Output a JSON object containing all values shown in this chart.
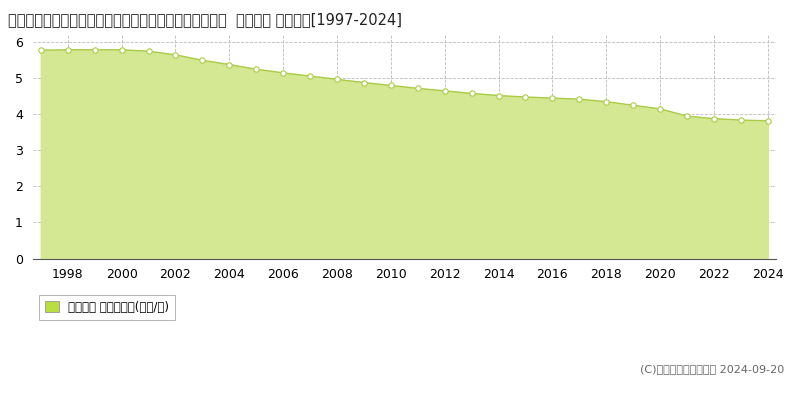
{
  "title": "長野県北佐久郡立科町大字芦田字上町屋敷２６８７番１  基準地価 地価推移[1997-2024]",
  "years": [
    1997,
    1998,
    1999,
    2000,
    2001,
    2002,
    2003,
    2004,
    2005,
    2006,
    2007,
    2008,
    2009,
    2010,
    2011,
    2012,
    2013,
    2014,
    2015,
    2016,
    2017,
    2018,
    2019,
    2020,
    2021,
    2022,
    2023,
    2024
  ],
  "values": [
    5.78,
    5.79,
    5.79,
    5.79,
    5.75,
    5.65,
    5.5,
    5.38,
    5.25,
    5.15,
    5.06,
    4.97,
    4.88,
    4.8,
    4.72,
    4.65,
    4.58,
    4.52,
    4.48,
    4.45,
    4.42,
    4.35,
    4.25,
    4.15,
    3.95,
    3.88,
    3.84,
    3.82
  ],
  "line_color": "#aacc44",
  "fill_color": "#d4e894",
  "marker_color": "#ffffff",
  "marker_edge_color": "#aacc44",
  "ylim": [
    0,
    6.2
  ],
  "yticks": [
    0,
    1,
    2,
    3,
    4,
    5,
    6
  ],
  "xtick_years": [
    1998,
    2000,
    2002,
    2004,
    2006,
    2008,
    2010,
    2012,
    2014,
    2016,
    2018,
    2020,
    2022,
    2024
  ],
  "grid_color": "#bbbbbb",
  "background_color": "#ffffff",
  "legend_label": "基準地価 平均坪単価(万円/坪)",
  "legend_marker_color": "#bbdd44",
  "copyright_text": "(C)土地価格ドットコム 2024-09-20",
  "title_fontsize": 10.5,
  "axis_fontsize": 9
}
